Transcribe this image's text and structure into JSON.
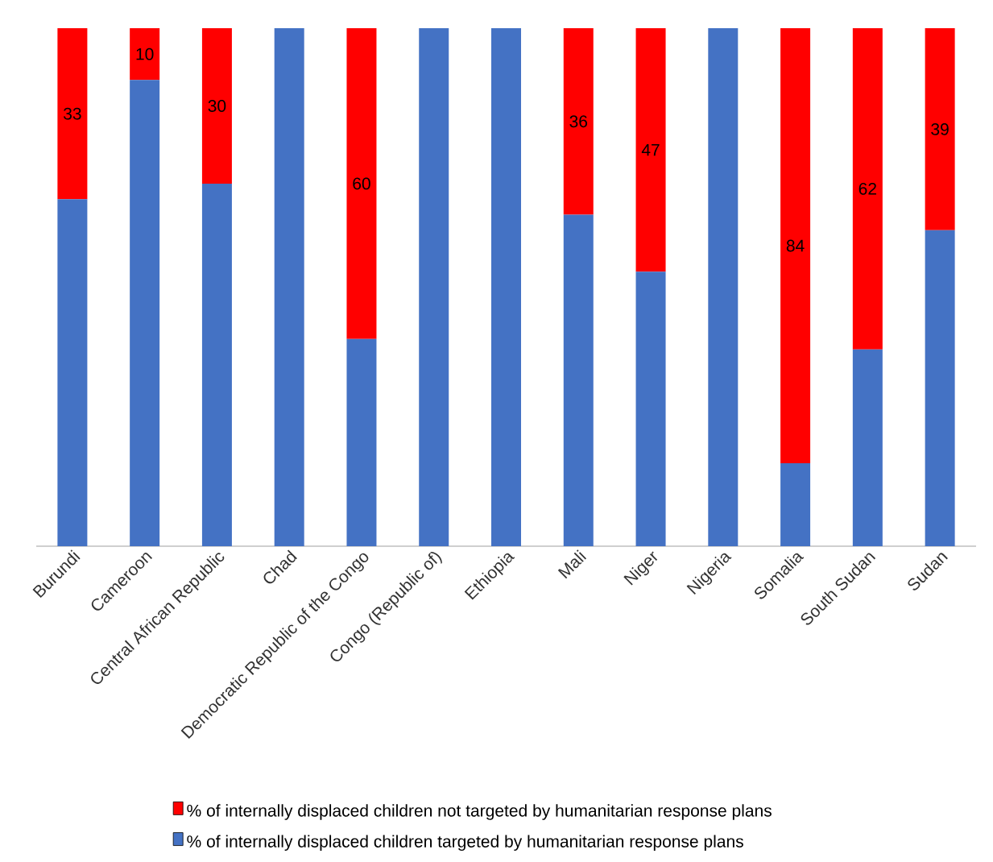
{
  "chart_data": {
    "type": "bar",
    "stacked": true,
    "legend": "bottom",
    "tick_labels": "x",
    "categories": [
      "Burundi",
      "Cameroon",
      "Central African Republic",
      "Chad",
      "Democratic Republic of the Congo",
      "Congo (Republic of)",
      "Ethiopia",
      "Mali",
      "Niger",
      "Nigeria",
      "Somalia",
      "South Sudan",
      "Sudan"
    ],
    "series": [
      {
        "name": "% of internally displaced children targeted by humanitarian response plans",
        "color": "#4472c4",
        "values": [
          67,
          90,
          70,
          100,
          40,
          100,
          100,
          64,
          53,
          100,
          16,
          38,
          61
        ]
      },
      {
        "name": "% of internally displaced children not targeted by humanitarian response plans",
        "color": "#ff0000",
        "values": [
          33,
          10,
          30,
          0,
          60,
          0,
          0,
          36,
          47,
          0,
          84,
          62,
          39
        ],
        "value_labels": [
          "33",
          "10",
          "30",
          null,
          "60",
          null,
          null,
          "36",
          "47",
          null,
          "84",
          "62",
          "39"
        ]
      }
    ]
  }
}
